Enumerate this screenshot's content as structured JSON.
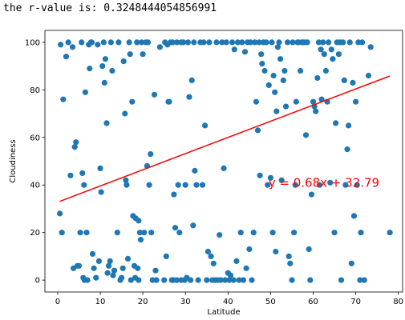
{
  "output": {
    "text": "the r-value is: 0.3248444054856991"
  },
  "chart_data": {
    "type": "scatter",
    "xlabel": "Latitude",
    "ylabel": "Cloudiness",
    "xlim": [
      -3,
      81
    ],
    "ylim": [
      -5,
      105
    ],
    "xticks": [
      0,
      10,
      20,
      30,
      40,
      50,
      60,
      70,
      80
    ],
    "yticks": [
      0,
      20,
      40,
      60,
      80,
      100
    ],
    "grid": false,
    "marker_color": "#1f77b4",
    "regression": {
      "slope": 0.68,
      "intercept": 32.79,
      "x_range": [
        0.5,
        78
      ],
      "color": "#ff0000",
      "equation": "y = 0.68x + 32.79",
      "equation_position": [
        49.5,
        41
      ]
    },
    "points": [
      [
        0.5,
        28
      ],
      [
        0.7,
        99
      ],
      [
        1,
        20
      ],
      [
        1.3,
        76
      ],
      [
        2,
        94
      ],
      [
        2.5,
        100
      ],
      [
        3,
        44
      ],
      [
        3.5,
        98
      ],
      [
        3.7,
        5
      ],
      [
        4,
        56
      ],
      [
        4.3,
        58
      ],
      [
        4.6,
        6
      ],
      [
        5,
        6
      ],
      [
        5.3,
        20
      ],
      [
        5.6,
        100
      ],
      [
        5.8,
        45
      ],
      [
        6,
        1
      ],
      [
        6.2,
        40
      ],
      [
        6.3,
        0
      ],
      [
        6.5,
        79
      ],
      [
        6.8,
        20
      ],
      [
        7,
        0
      ],
      [
        7.3,
        99
      ],
      [
        7.5,
        89
      ],
      [
        7.8,
        100
      ],
      [
        8,
        100
      ],
      [
        8.2,
        11
      ],
      [
        8.5,
        5
      ],
      [
        9,
        1
      ],
      [
        9.4,
        99
      ],
      [
        9.7,
        8
      ],
      [
        10,
        47
      ],
      [
        10.2,
        37
      ],
      [
        10.5,
        90
      ],
      [
        10.8,
        100
      ],
      [
        11,
        83
      ],
      [
        11.2,
        93
      ],
      [
        11.5,
        66
      ],
      [
        11.7,
        3
      ],
      [
        12,
        6
      ],
      [
        12.3,
        8
      ],
      [
        12.5,
        100
      ],
      [
        12.8,
        88
      ],
      [
        13,
        2
      ],
      [
        13.3,
        4
      ],
      [
        14,
        20
      ],
      [
        14.3,
        100
      ],
      [
        14.7,
        0
      ],
      [
        15,
        1
      ],
      [
        15.3,
        5
      ],
      [
        15.5,
        92
      ],
      [
        15.8,
        70
      ],
      [
        16,
        42
      ],
      [
        16.2,
        40
      ],
      [
        16.5,
        9
      ],
      [
        16.8,
        100
      ],
      [
        17,
        95
      ],
      [
        17.2,
        0
      ],
      [
        17.5,
        75
      ],
      [
        17.7,
        27
      ],
      [
        18,
        6
      ],
      [
        18.2,
        1
      ],
      [
        18.3,
        26
      ],
      [
        18.6,
        100
      ],
      [
        18.8,
        5
      ],
      [
        19,
        0
      ],
      [
        19,
        25
      ],
      [
        19.3,
        20
      ],
      [
        19.5,
        17
      ],
      [
        19.7,
        100
      ],
      [
        20,
        95
      ],
      [
        20.3,
        20
      ],
      [
        20.7,
        100
      ],
      [
        21,
        48
      ],
      [
        21.2,
        100
      ],
      [
        21.5,
        40
      ],
      [
        21.8,
        53
      ],
      [
        22,
        20
      ],
      [
        22.3,
        0
      ],
      [
        22.7,
        78
      ],
      [
        23,
        4
      ],
      [
        23.2,
        0
      ],
      [
        24,
        98
      ],
      [
        25,
        0
      ],
      [
        25.2,
        100
      ],
      [
        25.5,
        10
      ],
      [
        25.8,
        99
      ],
      [
        26,
        75
      ],
      [
        26.2,
        75
      ],
      [
        26.5,
        100
      ],
      [
        26.8,
        0
      ],
      [
        27,
        100
      ],
      [
        27.2,
        0
      ],
      [
        27.3,
        36
      ],
      [
        27.6,
        22
      ],
      [
        28,
        100
      ],
      [
        28,
        0
      ],
      [
        28.3,
        40
      ],
      [
        28.6,
        20
      ],
      [
        29,
        100
      ],
      [
        29,
        0
      ],
      [
        29.5,
        100
      ],
      [
        29.8,
        0
      ],
      [
        30,
        40
      ],
      [
        30.3,
        1
      ],
      [
        30.6,
        100
      ],
      [
        30.9,
        77
      ],
      [
        31.2,
        0
      ],
      [
        31.5,
        84
      ],
      [
        31.8,
        23
      ],
      [
        32,
        100
      ],
      [
        32.2,
        46
      ],
      [
        32.6,
        40
      ],
      [
        33,
        0
      ],
      [
        33.5,
        100
      ],
      [
        34,
        40
      ],
      [
        34.3,
        100
      ],
      [
        34.6,
        65
      ],
      [
        35,
        0
      ],
      [
        35.3,
        12
      ],
      [
        35.6,
        100
      ],
      [
        36,
        10
      ],
      [
        36.3,
        0
      ],
      [
        36.6,
        7
      ],
      [
        37,
        0
      ],
      [
        37.3,
        100
      ],
      [
        37.6,
        0
      ],
      [
        38,
        19
      ],
      [
        38.3,
        0
      ],
      [
        38.6,
        100
      ],
      [
        39,
        47
      ],
      [
        39.3,
        0
      ],
      [
        39.6,
        100
      ],
      [
        40,
        3
      ],
      [
        40.3,
        0
      ],
      [
        40.6,
        2
      ],
      [
        41,
        100
      ],
      [
        41.3,
        0
      ],
      [
        41.5,
        97
      ],
      [
        42,
        8
      ],
      [
        42.3,
        100
      ],
      [
        42.6,
        0
      ],
      [
        43,
        20
      ],
      [
        43.3,
        100
      ],
      [
        43.6,
        0
      ],
      [
        44,
        96
      ],
      [
        44.3,
        5
      ],
      [
        44.6,
        100
      ],
      [
        45,
        13
      ],
      [
        45.3,
        100
      ],
      [
        45.6,
        0
      ],
      [
        46,
        20
      ],
      [
        46.3,
        100
      ],
      [
        46.6,
        75
      ],
      [
        47,
        63
      ],
      [
        47.3,
        100
      ],
      [
        47.5,
        44
      ],
      [
        47.8,
        95
      ],
      [
        48,
        91
      ],
      [
        48.3,
        100
      ],
      [
        48.6,
        88
      ],
      [
        49,
        100
      ],
      [
        49.3,
        40
      ],
      [
        49.6,
        82
      ],
      [
        50,
        43
      ],
      [
        50.3,
        100
      ],
      [
        50.5,
        20
      ],
      [
        50.7,
        86
      ],
      [
        51,
        79
      ],
      [
        51.2,
        12
      ],
      [
        51.4,
        71
      ],
      [
        51.7,
        98
      ],
      [
        52,
        100
      ],
      [
        52.3,
        93
      ],
      [
        52.6,
        42
      ],
      [
        53,
        84
      ],
      [
        53.3,
        88
      ],
      [
        53.6,
        73
      ],
      [
        54,
        100
      ],
      [
        54.3,
        10
      ],
      [
        54.6,
        7
      ],
      [
        55,
        0
      ],
      [
        55.2,
        100
      ],
      [
        55.5,
        20
      ],
      [
        55.8,
        40
      ],
      [
        56,
        75
      ],
      [
        56.3,
        100
      ],
      [
        56.6,
        100
      ],
      [
        57,
        88
      ],
      [
        57.3,
        100
      ],
      [
        57.6,
        100
      ],
      [
        58,
        100
      ],
      [
        58.3,
        61
      ],
      [
        58.6,
        100
      ],
      [
        59,
        13
      ],
      [
        59.3,
        0
      ],
      [
        59.6,
        36
      ],
      [
        60,
        75
      ],
      [
        60.3,
        73
      ],
      [
        60.6,
        71
      ],
      [
        61,
        85
      ],
      [
        61.3,
        100
      ],
      [
        61.5,
        40
      ],
      [
        61.8,
        97
      ],
      [
        62,
        76
      ],
      [
        62.3,
        100
      ],
      [
        62.6,
        95
      ],
      [
        63,
        88
      ],
      [
        63.3,
        75
      ],
      [
        63.6,
        100
      ],
      [
        64,
        41
      ],
      [
        64.3,
        97
      ],
      [
        64.6,
        93
      ],
      [
        65,
        20
      ],
      [
        65.3,
        66
      ],
      [
        65.6,
        100
      ],
      [
        66,
        95
      ],
      [
        66.3,
        100
      ],
      [
        66.6,
        0
      ],
      [
        67,
        100
      ],
      [
        67.3,
        84
      ],
      [
        67.6,
        40
      ],
      [
        68,
        55
      ],
      [
        68.3,
        65
      ],
      [
        68.6,
        100
      ],
      [
        69,
        7
      ],
      [
        69.3,
        83
      ],
      [
        69.6,
        27
      ],
      [
        70,
        75
      ],
      [
        70.3,
        40
      ],
      [
        70.6,
        100
      ],
      [
        71,
        0
      ],
      [
        71.2,
        20
      ],
      [
        71.5,
        100
      ],
      [
        72,
        0
      ],
      [
        73,
        86
      ],
      [
        73.5,
        98
      ],
      [
        78,
        20
      ]
    ]
  }
}
